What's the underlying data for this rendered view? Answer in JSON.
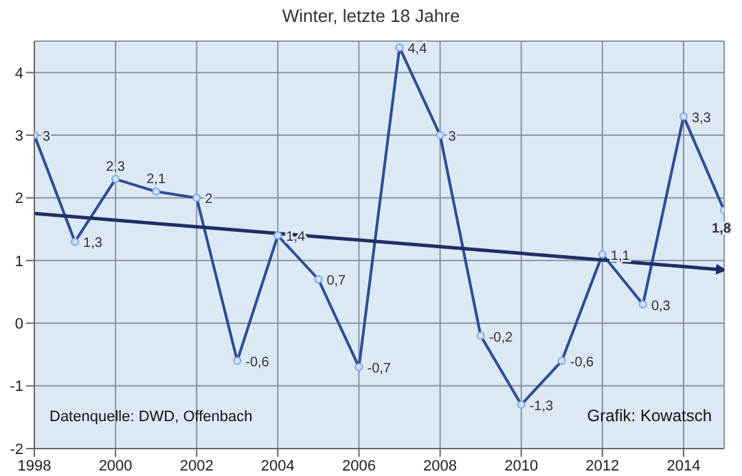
{
  "chart_data": {
    "type": "line",
    "title": "Winter, letzte 18 Jahre",
    "x": [
      1998,
      1999,
      2000,
      2001,
      2002,
      2003,
      2004,
      2005,
      2006,
      2007,
      2008,
      2009,
      2010,
      2011,
      2012,
      2013,
      2014,
      2015
    ],
    "series": [
      {
        "color": "#2e4d96",
        "values": [
          3,
          1.3,
          2.3,
          2.1,
          2,
          -0.6,
          1.4,
          0.7,
          -0.7,
          4.4,
          3,
          -0.2,
          -1.3,
          -0.6,
          1.1,
          0.3,
          3.3,
          1.8
        ],
        "value_labels": [
          "3",
          "1,3",
          "2,3",
          "2,1",
          "2",
          "-0,6",
          "1,4",
          "0,7",
          "-0,7",
          "4,4",
          "3",
          "-0,2",
          "-1,3",
          "-0,6",
          "1,1",
          "0,3",
          "3,3",
          "1,8"
        ],
        "marker": "circle"
      },
      {
        "type": "line",
        "color": "#1f2f66",
        "x": [
          1998,
          2015
        ],
        "values": [
          1.75,
          0.85
        ],
        "marker": "none"
      }
    ],
    "xlim": [
      1998,
      2015
    ],
    "xticks": [
      1998,
      2000,
      2002,
      2004,
      2006,
      2008,
      2010,
      2012,
      2014
    ],
    "ylim": [
      -2,
      4.5
    ],
    "yticks": [
      -2,
      -1,
      0,
      1,
      2,
      3,
      4
    ],
    "grid": true,
    "annotations": [
      "Datenquelle: DWD, Offenbach",
      "Grafik: Kowatsch"
    ]
  }
}
